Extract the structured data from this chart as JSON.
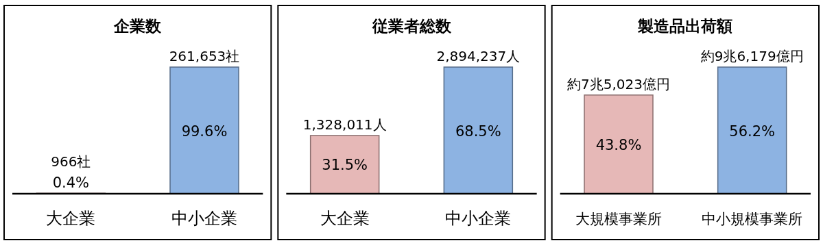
{
  "chart_data": [
    {
      "type": "bar",
      "title": "企業数",
      "categories": [
        "大企業",
        "中小企業"
      ],
      "values": [
        0.4,
        99.6
      ],
      "colors": [
        "#e6b8b7",
        "#8db3e2"
      ],
      "value_labels": [
        "0.4%",
        "99.6%"
      ],
      "annotations": [
        {
          "text": "966社",
          "x": "大企業",
          "y": 0.4
        },
        {
          "text": "261,653社",
          "x": "中小企業",
          "y": 99.6
        }
      ]
    },
    {
      "type": "bar",
      "title": "従業者総数",
      "categories": [
        "大企業",
        "中小企業"
      ],
      "values": [
        31.5,
        68.5
      ],
      "colors": [
        "#e6b8b7",
        "#8db3e2"
      ],
      "value_labels": [
        "31.5%",
        "68.5%"
      ],
      "annotations": [
        {
          "text": "1,328,011人",
          "x": "大企業",
          "y": 31.5
        },
        {
          "text": "2,894,237人",
          "x": "中小企業",
          "y": 68.5
        }
      ]
    },
    {
      "type": "bar",
      "title": "製造品出荷額",
      "categories": [
        "大規模事業所",
        "中小規模事業所"
      ],
      "values": [
        43.8,
        56.2
      ],
      "colors": [
        "#e6b8b7",
        "#8db3e2"
      ],
      "value_labels": [
        "43.8%",
        "56.2%"
      ],
      "annotations": [
        {
          "text": "約7兆5,023億円",
          "x": "大規模事業所",
          "y": 43.8
        },
        {
          "text": "約9兆6,179億円",
          "x": "中小規模事業所",
          "y": 56.2
        }
      ]
    }
  ]
}
